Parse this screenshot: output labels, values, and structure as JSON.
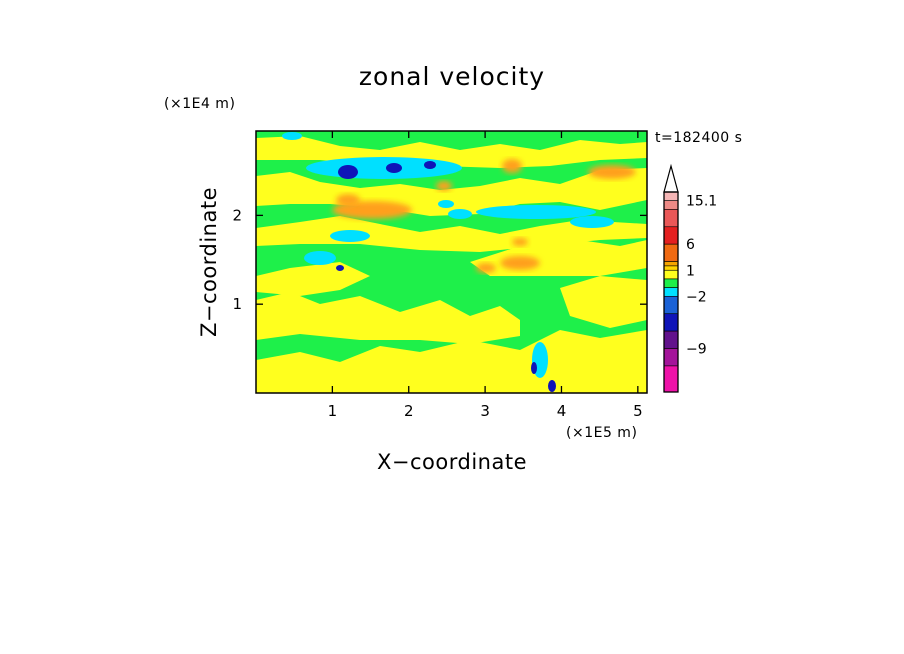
{
  "chart_data": {
    "type": "heatmap",
    "title": "zonal velocity",
    "xlabel": "X−coordinate",
    "ylabel": "Z−coordinate",
    "x_unit": "(×1E5 m)",
    "y_unit": "(×1E4 m)",
    "time_label": "t=182400 s",
    "x_ticks": [
      "1",
      "2",
      "3",
      "4",
      "5"
    ],
    "y_ticks": [
      "1",
      "2"
    ],
    "xlim": [
      0,
      5.12
    ],
    "ylim": [
      0,
      2.95
    ],
    "grid": false,
    "colorbar": {
      "labels": [
        "15.1",
        "6",
        "1",
        "−2",
        "−9"
      ],
      "label_levels": [
        15.1,
        6,
        1,
        -2,
        -9
      ],
      "bins": [
        {
          "color": "#f5b5b5"
        },
        {
          "color": "#ee8a86"
        },
        {
          "color": "#ea5858"
        },
        {
          "color": "#e42020"
        },
        {
          "color": "#f06a12"
        },
        {
          "color": "#f5a500"
        },
        {
          "color": "#ffd400"
        },
        {
          "color": "#ffff1e"
        },
        {
          "color": "#1ef04a"
        },
        {
          "color": "#00e0ff"
        },
        {
          "color": "#1a62d6"
        },
        {
          "color": "#0f14b8"
        },
        {
          "color": "#62128c"
        },
        {
          "color": "#a4149a"
        },
        {
          "color": "#ee12a8"
        }
      ]
    },
    "field_levels": [
      {
        "value": 3,
        "color": "#ffa01e"
      },
      {
        "value": 1,
        "color": "#ffff1e"
      },
      {
        "value": -1,
        "color": "#1ef04a"
      },
      {
        "value": -4,
        "color": "#00e0ff"
      },
      {
        "value": -9,
        "color": "#0f14b8"
      }
    ]
  }
}
